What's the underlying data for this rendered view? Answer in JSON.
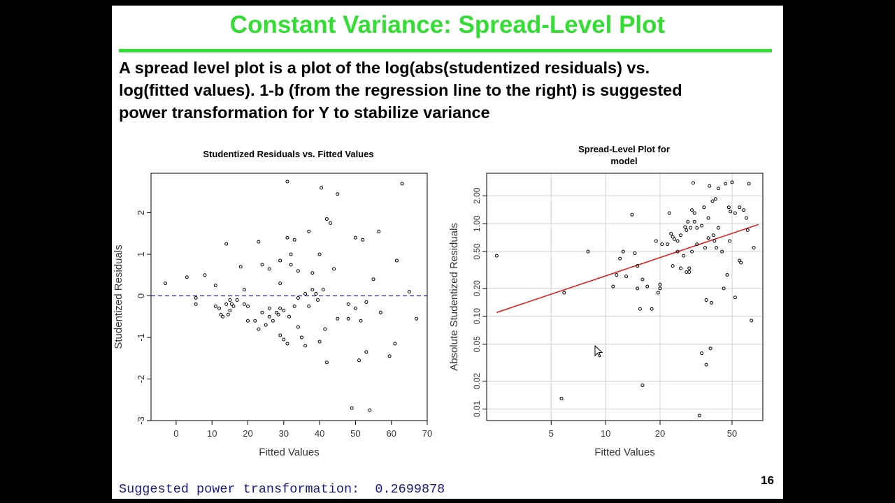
{
  "slide": {
    "title": "Constant Variance: Spread-Level Plot",
    "body_lines": [
      "A spread level plot is a plot of the log(abs(studentized residuals) vs.",
      "log(fitted values).  1-b (from the regression line to the right) is suggested",
      "power transformation for Y to stabilize variance"
    ],
    "footer": "Suggested power transformation:  0.2699878",
    "page_number": "16",
    "title_color": "#33dd33"
  },
  "chart_data": [
    {
      "type": "scatter",
      "title": "Studentized Residuals vs. Fitted Values",
      "xlabel": "Fitted Values",
      "ylabel": "Studentized Residuals",
      "xlim": [
        -7,
        70
      ],
      "ylim": [
        -3,
        2.95
      ],
      "xticks": [
        0,
        10,
        20,
        30,
        40,
        50,
        60,
        70
      ],
      "yticks": [
        -3,
        -2,
        -1,
        0,
        1,
        2
      ],
      "reference_line": {
        "y": 0,
        "style": "dashed",
        "color": "#2222aa"
      },
      "grid": false,
      "points": [
        [
          -3,
          0.3
        ],
        [
          3,
          0.45
        ],
        [
          5.5,
          -0.05
        ],
        [
          5.5,
          -0.2
        ],
        [
          8,
          0.5
        ],
        [
          11,
          0.25
        ],
        [
          11,
          -0.25
        ],
        [
          12,
          -0.3
        ],
        [
          12.5,
          -0.45
        ],
        [
          13,
          -0.5
        ],
        [
          14,
          1.25
        ],
        [
          14,
          -0.2
        ],
        [
          14.5,
          -0.45
        ],
        [
          15,
          -0.1
        ],
        [
          15,
          -0.35
        ],
        [
          15.5,
          -0.2
        ],
        [
          16,
          -0.25
        ],
        [
          17,
          -0.1
        ],
        [
          18,
          0.7
        ],
        [
          19,
          0.15
        ],
        [
          19,
          -0.2
        ],
        [
          20,
          -0.25
        ],
        [
          20,
          -0.6
        ],
        [
          22,
          -0.6
        ],
        [
          23,
          1.3
        ],
        [
          23,
          -0.8
        ],
        [
          24,
          0.75
        ],
        [
          24,
          -0.4
        ],
        [
          25,
          -0.7
        ],
        [
          26,
          0.65
        ],
        [
          26,
          -0.3
        ],
        [
          26,
          -0.5
        ],
        [
          27,
          -0.6
        ],
        [
          28,
          -0.4
        ],
        [
          28.5,
          -0.45
        ],
        [
          29,
          0.85
        ],
        [
          29,
          0.3
        ],
        [
          29,
          -0.3
        ],
        [
          29,
          -0.95
        ],
        [
          30,
          -0.35
        ],
        [
          30,
          -1.05
        ],
        [
          31,
          2.75
        ],
        [
          31,
          1.4
        ],
        [
          31,
          -1.15
        ],
        [
          31.5,
          -0.5
        ],
        [
          32,
          1.0
        ],
        [
          32,
          0.75
        ],
        [
          33,
          1.35
        ],
        [
          33,
          -0.25
        ],
        [
          34,
          0.6
        ],
        [
          34,
          -0.05
        ],
        [
          34,
          -0.75
        ],
        [
          35,
          -1.0
        ],
        [
          36,
          0.05
        ],
        [
          36,
          -1.2
        ],
        [
          37,
          1.55
        ],
        [
          37,
          -0.25
        ],
        [
          38,
          0.15
        ],
        [
          38,
          0.55
        ],
        [
          39,
          0.05
        ],
        [
          39.5,
          -0.1
        ],
        [
          40,
          -1.1
        ],
        [
          40,
          1.0
        ],
        [
          40.5,
          2.6
        ],
        [
          41,
          0.15
        ],
        [
          41.5,
          -0.8
        ],
        [
          42,
          1.85
        ],
        [
          42,
          -1.6
        ],
        [
          43,
          1.75
        ],
        [
          44,
          0.65
        ],
        [
          45,
          2.45
        ],
        [
          45,
          -0.55
        ],
        [
          48,
          -0.2
        ],
        [
          48,
          -0.55
        ],
        [
          49,
          -2.7
        ],
        [
          50,
          -0.3
        ],
        [
          50,
          1.4
        ],
        [
          51,
          -1.55
        ],
        [
          51.5,
          -0.6
        ],
        [
          52,
          1.35
        ],
        [
          53,
          -1.35
        ],
        [
          53,
          -0.15
        ],
        [
          54,
          -2.75
        ],
        [
          55,
          0.4
        ],
        [
          56.5,
          1.55
        ],
        [
          57,
          -0.4
        ],
        [
          59.5,
          -1.45
        ],
        [
          61,
          -1.15
        ],
        [
          61.5,
          0.85
        ],
        [
          63,
          2.7
        ],
        [
          65,
          0.1
        ],
        [
          67,
          -0.55
        ]
      ]
    },
    {
      "type": "scatter",
      "title_lines": [
        "Spread-Level Plot for",
        "model"
      ],
      "xlabel": "Fitted Values",
      "ylabel": "Absolute Studentized Residuals",
      "x_scale": "log",
      "y_scale": "log",
      "xlim": [
        2.2,
        74
      ],
      "ylim": [
        0.0075,
        3.5
      ],
      "xticks": [
        5,
        10,
        20,
        50
      ],
      "yticks": [
        0.01,
        0.02,
        0.05,
        0.1,
        0.2,
        0.5,
        1.0,
        2.0
      ],
      "ytick_labels": [
        "0.01",
        "0.02",
        "0.05",
        "0.10",
        "0.20",
        "0.50",
        "1.00",
        "2.00"
      ],
      "grid": true,
      "fit_line": {
        "x": [
          2.5,
          70
        ],
        "y": [
          0.11,
          0.98
        ],
        "color": "#dd2222"
      },
      "points": [
        [
          2.5,
          0.45
        ],
        [
          5.7,
          0.013
        ],
        [
          5.9,
          0.18
        ],
        [
          8,
          0.5
        ],
        [
          11,
          0.21
        ],
        [
          11.5,
          0.28
        ],
        [
          12,
          0.42
        ],
        [
          12.5,
          0.5
        ],
        [
          13,
          0.27
        ],
        [
          14,
          1.25
        ],
        [
          14.5,
          0.48
        ],
        [
          15,
          0.35
        ],
        [
          15,
          0.2
        ],
        [
          15.5,
          0.12
        ],
        [
          16,
          0.018
        ],
        [
          16,
          0.25
        ],
        [
          17,
          0.21
        ],
        [
          18,
          0.12
        ],
        [
          19,
          0.65
        ],
        [
          19.5,
          0.18
        ],
        [
          20,
          0.2
        ],
        [
          20,
          0.22
        ],
        [
          20.5,
          0.6
        ],
        [
          22,
          0.6
        ],
        [
          22.5,
          1.3
        ],
        [
          23,
          0.78
        ],
        [
          23.5,
          0.72
        ],
        [
          23.5,
          0.35
        ],
        [
          24,
          0.68
        ],
        [
          25,
          0.65
        ],
        [
          25,
          0.5
        ],
        [
          26,
          0.75
        ],
        [
          26,
          0.33
        ],
        [
          27,
          0.45
        ],
        [
          27.5,
          0.92
        ],
        [
          28,
          0.3
        ],
        [
          28,
          0.85
        ],
        [
          28.5,
          1.05
        ],
        [
          29,
          0.3
        ],
        [
          29,
          0.33
        ],
        [
          29.5,
          0.9
        ],
        [
          30,
          0.5
        ],
        [
          30,
          1.4
        ],
        [
          30.5,
          2.75
        ],
        [
          31,
          1.3
        ],
        [
          31,
          1.05
        ],
        [
          32,
          0.6
        ],
        [
          32,
          0.9
        ],
        [
          33,
          0.0085
        ],
        [
          34,
          0.95
        ],
        [
          34,
          0.04
        ],
        [
          35,
          1.5
        ],
        [
          35.5,
          0.55
        ],
        [
          36,
          0.03
        ],
        [
          36,
          0.15
        ],
        [
          37,
          1.15
        ],
        [
          37,
          0.7
        ],
        [
          37.5,
          2.55
        ],
        [
          38,
          0.045
        ],
        [
          38.5,
          0.14
        ],
        [
          39,
          1.75
        ],
        [
          39.5,
          0.75
        ],
        [
          40,
          0.65
        ],
        [
          40.5,
          1.85
        ],
        [
          41,
          0.55
        ],
        [
          42,
          2.4
        ],
        [
          42,
          0.9
        ],
        [
          44,
          0.5
        ],
        [
          45,
          0.2
        ],
        [
          46,
          2.7
        ],
        [
          47,
          0.28
        ],
        [
          48,
          1.5
        ],
        [
          48.5,
          0.65
        ],
        [
          49,
          1.35
        ],
        [
          50,
          2.8
        ],
        [
          52,
          0.16
        ],
        [
          52,
          1.3
        ],
        [
          55,
          1.5
        ],
        [
          55,
          0.4
        ],
        [
          56,
          0.38
        ],
        [
          58,
          1.4
        ],
        [
          60,
          1.15
        ],
        [
          61,
          0.85
        ],
        [
          62,
          2.7
        ],
        [
          64,
          0.09
        ],
        [
          66,
          0.55
        ]
      ]
    }
  ]
}
